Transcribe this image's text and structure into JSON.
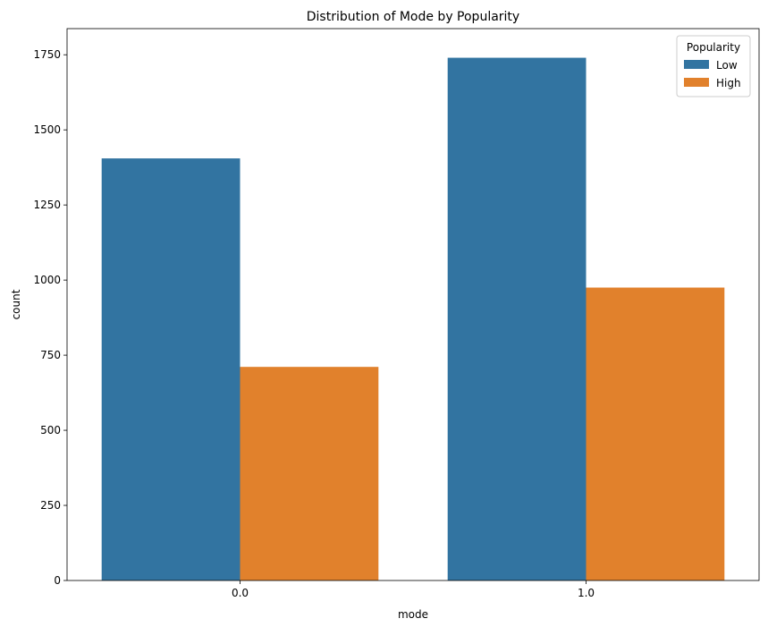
{
  "chart_data": {
    "type": "bar",
    "title": "Distribution of Mode by Popularity",
    "xlabel": "mode",
    "ylabel": "count",
    "categories": [
      "0.0",
      "1.0"
    ],
    "series": [
      {
        "name": "Low",
        "values": [
          1405,
          1740
        ],
        "color": "#3274a1"
      },
      {
        "name": "High",
        "values": [
          711,
          975
        ],
        "color": "#e1812c"
      }
    ],
    "ylim": [
      0,
      1837
    ],
    "yticks": [
      0,
      250,
      500,
      750,
      1000,
      1250,
      1500,
      1750
    ],
    "legend": {
      "title": "Popularity",
      "placement": "top-right"
    },
    "grid": false
  }
}
